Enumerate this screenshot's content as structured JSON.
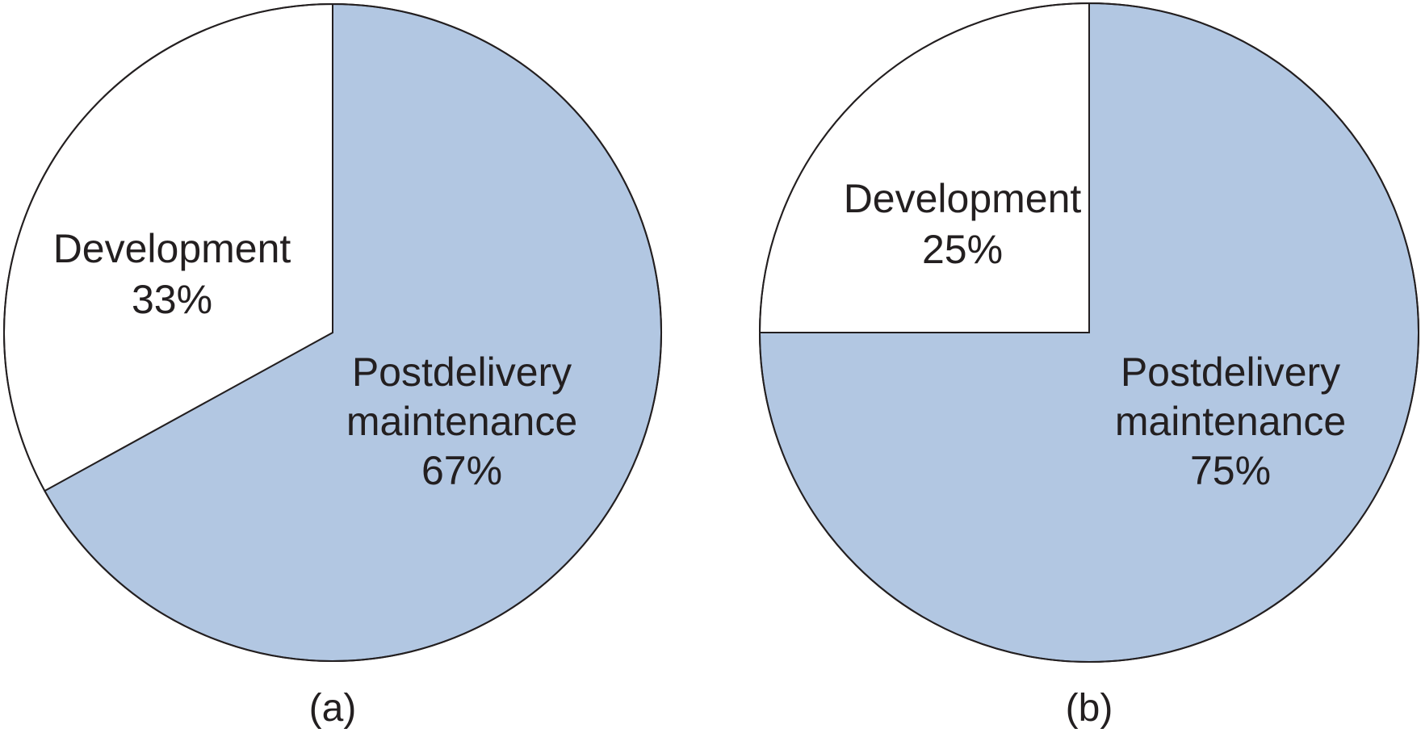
{
  "chart_data": [
    {
      "type": "pie",
      "caption": "(a)",
      "start_angle_deg": 0,
      "direction": "clockwise",
      "slices": [
        {
          "name": "Postdelivery maintenance",
          "label_lines": [
            "Postdelivery",
            "maintenance",
            "67%"
          ],
          "value": 67,
          "color": "#b2c7e2"
        },
        {
          "name": "Development",
          "label_lines": [
            "Development",
            "33%"
          ],
          "value": 33,
          "color": "#ffffff"
        }
      ]
    },
    {
      "type": "pie",
      "caption": "(b)",
      "start_angle_deg": 0,
      "direction": "clockwise",
      "slices": [
        {
          "name": "Postdelivery maintenance",
          "label_lines": [
            "Postdelivery",
            "maintenance",
            "75%"
          ],
          "value": 75,
          "color": "#b2c7e2"
        },
        {
          "name": "Development",
          "label_lines": [
            "Development",
            "25%"
          ],
          "value": 25,
          "color": "#ffffff"
        }
      ]
    }
  ]
}
